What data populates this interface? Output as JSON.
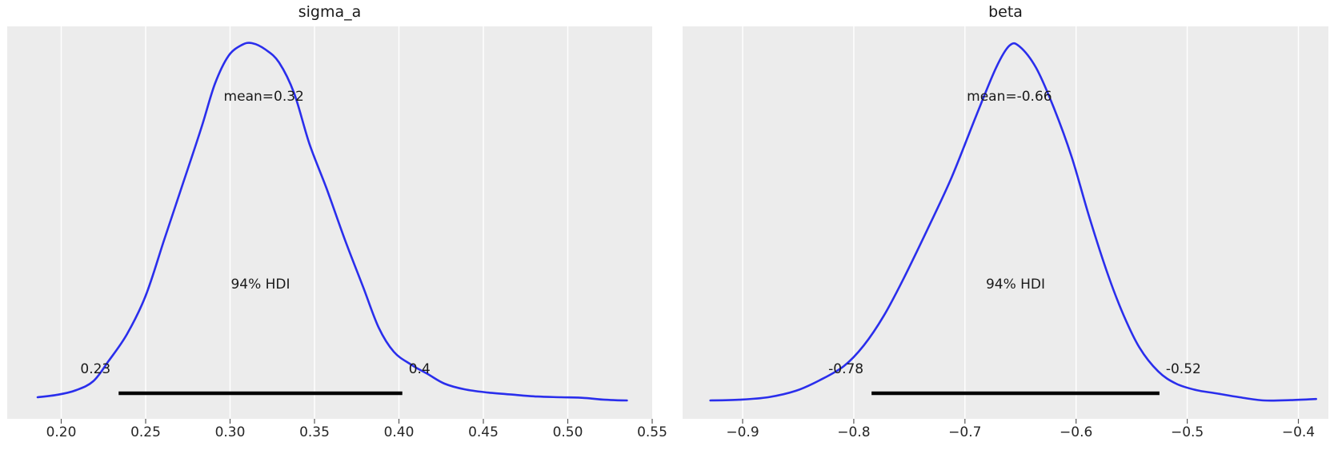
{
  "figure": {
    "background": "#ffffff",
    "panel_background": "#ececec",
    "grid_color": "#ffffff",
    "curve_color": "#2a2eec",
    "hdi_bar_color": "#000000",
    "text_color": "#1a1a1a",
    "tick_text_color": "#262626"
  },
  "chart_data": [
    {
      "type": "kde",
      "title": "sigma_a",
      "xlabel": "",
      "ylabel": "",
      "legend": null,
      "grid": true,
      "mean": 0.32,
      "mean_label": "mean=0.32",
      "hdi_prob": 0.94,
      "hdi_prob_label": "94% HDI",
      "hdi_lower": 0.23,
      "hdi_upper": 0.4,
      "hdi_lower_label": "0.23",
      "hdi_upper_label": "0.4",
      "hdi_bar": [
        0.234,
        0.402
      ],
      "xlim": [
        0.168,
        0.55
      ],
      "xticks": [
        0.2,
        0.25,
        0.3,
        0.35,
        0.4,
        0.45,
        0.5,
        0.55
      ],
      "xtick_labels": [
        "0.20",
        "0.25",
        "0.30",
        "0.35",
        "0.40",
        "0.45",
        "0.50",
        "0.55"
      ],
      "curve_x": [
        0.186,
        0.198,
        0.209,
        0.219,
        0.228,
        0.239,
        0.25,
        0.261,
        0.272,
        0.283,
        0.291,
        0.299,
        0.307,
        0.313,
        0.321,
        0.329,
        0.338,
        0.347,
        0.357,
        0.368,
        0.379,
        0.388,
        0.397,
        0.407,
        0.417,
        0.427,
        0.439,
        0.453,
        0.468,
        0.482,
        0.496,
        0.51,
        0.522,
        0.535
      ],
      "curve_density": [
        0.009,
        0.016,
        0.029,
        0.054,
        0.11,
        0.186,
        0.293,
        0.45,
        0.606,
        0.763,
        0.886,
        0.964,
        0.995,
        1.0,
        0.982,
        0.946,
        0.859,
        0.718,
        0.595,
        0.45,
        0.315,
        0.204,
        0.136,
        0.101,
        0.074,
        0.047,
        0.031,
        0.022,
        0.016,
        0.011,
        0.009,
        0.007,
        0.002,
        0.0
      ]
    },
    {
      "type": "kde",
      "title": "beta",
      "xlabel": "",
      "ylabel": "",
      "legend": null,
      "grid": true,
      "mean": -0.66,
      "mean_label": "mean=-0.66",
      "hdi_prob": 0.94,
      "hdi_prob_label": "94% HDI",
      "hdi_lower": -0.78,
      "hdi_upper": -0.52,
      "hdi_lower_label": "-0.78",
      "hdi_upper_label": "-0.52",
      "hdi_bar": [
        -0.784,
        -0.525
      ],
      "xlim": [
        -0.954,
        -0.373
      ],
      "xticks": [
        -0.9,
        -0.8,
        -0.7,
        -0.6,
        -0.5,
        -0.4
      ],
      "xtick_labels": [
        "−0.9",
        "−0.8",
        "−0.7",
        "−0.6",
        "−0.5",
        "−0.4"
      ],
      "curve_x": [
        -0.929,
        -0.903,
        -0.877,
        -0.852,
        -0.831,
        -0.809,
        -0.791,
        -0.773,
        -0.755,
        -0.734,
        -0.712,
        -0.69,
        -0.672,
        -0.66,
        -0.651,
        -0.636,
        -0.62,
        -0.604,
        -0.588,
        -0.571,
        -0.557,
        -0.543,
        -0.526,
        -0.51,
        -0.492,
        -0.474,
        -0.453,
        -0.431,
        -0.407,
        -0.384
      ],
      "curve_density": [
        0.0,
        0.002,
        0.009,
        0.027,
        0.056,
        0.096,
        0.154,
        0.237,
        0.342,
        0.477,
        0.624,
        0.796,
        0.931,
        0.993,
        0.991,
        0.931,
        0.819,
        0.682,
        0.512,
        0.349,
        0.237,
        0.148,
        0.081,
        0.047,
        0.029,
        0.02,
        0.009,
        0.0,
        0.001,
        0.004
      ]
    }
  ]
}
